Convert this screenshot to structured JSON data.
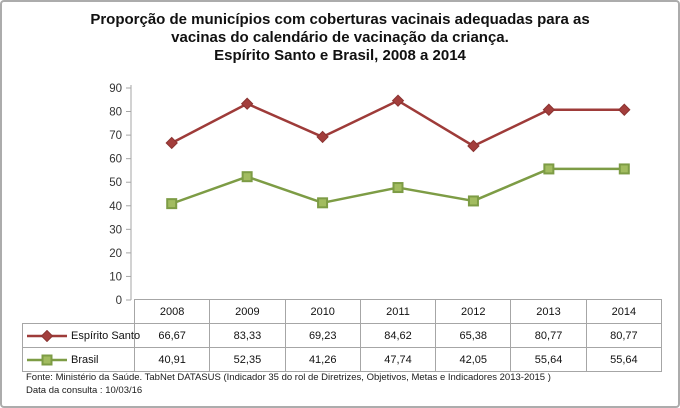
{
  "title": "Proporção de municípios com coberturas vacinais adequadas para as\nvacinas do calendário de vacinação da criança.\nEspírito Santo e Brasil, 2008 a 2014",
  "footer": {
    "source_line": "Fonte: Ministério da Saúde. TabNet DATASUS (Indicador 35 do rol de Diretrizes, Objetivos, Metas e Indicadores 2013-2015 )",
    "date_line": "Data da consulta : 10/03/16"
  },
  "chart_data": {
    "type": "line",
    "title": "Proporção de municípios com coberturas vacinais adequadas para as vacinas do calendário de vacinação da criança. Espírito Santo e Brasil, 2008 a 2014",
    "categories": [
      "2008",
      "2009",
      "2010",
      "2011",
      "2012",
      "2013",
      "2014"
    ],
    "series": [
      {
        "name": "Espírito Santo",
        "values": [
          66.67,
          83.33,
          69.23,
          84.62,
          65.38,
          80.77,
          80.77
        ],
        "display": [
          "66,67",
          "83,33",
          "69,23",
          "84,62",
          "65,38",
          "80,77",
          "80,77"
        ],
        "marker": "diamond",
        "line_color": "#9E3B39",
        "marker_fill": "#A33E3C",
        "marker_stroke": "#8A3331"
      },
      {
        "name": "Brasil",
        "values": [
          40.91,
          52.35,
          41.26,
          47.74,
          42.05,
          55.64,
          55.64
        ],
        "display": [
          "40,91",
          "52,35",
          "41,26",
          "47,74",
          "42,05",
          "55,64",
          "55,64"
        ],
        "marker": "square",
        "line_color": "#7D9C45",
        "marker_fill": "#A2BC60",
        "marker_stroke": "#7D9C45"
      }
    ],
    "xlabel": "",
    "ylabel": "",
    "ylim": [
      0,
      90
    ],
    "ytick_step": 10,
    "grid": false,
    "legend_position": "table-left",
    "axis_color": "#A6A6A6",
    "tick_label_color": "#333333"
  }
}
